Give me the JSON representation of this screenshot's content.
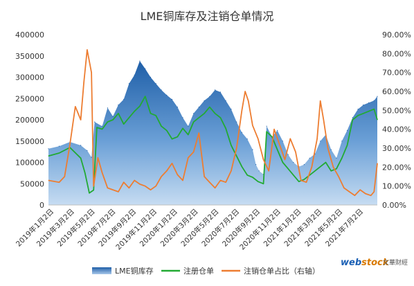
{
  "chart_data": {
    "type": "area",
    "title": "LME铜库存及注销仓单情况",
    "x_ticks": [
      "2019年1月2日",
      "2019年3月2日",
      "2019年5月2日",
      "2019年7月2日",
      "2019年9月2日",
      "2019年11月2日",
      "2020年1月2日",
      "2020年3月2日",
      "2020年5月2日",
      "2020年7月2日",
      "2020年9月2日",
      "2020年11月2日",
      "2021年1月2日",
      "2021年3月2日",
      "2021年5月2日",
      "2021年7月2日"
    ],
    "y_left": {
      "min": 0,
      "max": 400000,
      "ticks": [
        "0",
        "50000",
        "100000",
        "150000",
        "200000",
        "250000",
        "300000",
        "350000",
        "400000"
      ]
    },
    "y_right": {
      "min": 0,
      "max": 90,
      "ticks": [
        "0.00%",
        "10.00%",
        "20.00%",
        "30.00%",
        "40.00%",
        "50.00%",
        "60.00%",
        "70.00%",
        "80.00%",
        "90.00%"
      ]
    },
    "series": [
      {
        "name": "LME铜库存",
        "axis": "left",
        "style": "area",
        "color": "#2f6db0",
        "points": [
          [
            0,
            132000
          ],
          [
            1,
            138000
          ],
          [
            2,
            148000
          ],
          [
            3,
            140000
          ],
          [
            3.6,
            128000
          ],
          [
            4,
            112000
          ],
          [
            4.3,
            195000
          ],
          [
            5,
            185000
          ],
          [
            5.5,
            228000
          ],
          [
            6,
            208000
          ],
          [
            6.5,
            235000
          ],
          [
            7,
            248000
          ],
          [
            7.5,
            285000
          ],
          [
            8,
            305000
          ],
          [
            8.5,
            338000
          ],
          [
            9,
            320000
          ],
          [
            9.5,
            300000
          ],
          [
            10,
            285000
          ],
          [
            10.5,
            270000
          ],
          [
            11,
            258000
          ],
          [
            11.5,
            248000
          ],
          [
            12,
            230000
          ],
          [
            12.5,
            205000
          ],
          [
            13,
            185000
          ],
          [
            13.5,
            215000
          ],
          [
            14,
            230000
          ],
          [
            14.5,
            245000
          ],
          [
            15,
            255000
          ],
          [
            15.5,
            270000
          ],
          [
            16,
            265000
          ],
          [
            16.5,
            245000
          ],
          [
            17,
            225000
          ],
          [
            17.5,
            195000
          ],
          [
            18,
            170000
          ],
          [
            18.5,
            155000
          ],
          [
            19,
            130000
          ],
          [
            19.3,
            95000
          ],
          [
            19.6,
            80000
          ],
          [
            20,
            72000
          ],
          [
            20.3,
            185000
          ],
          [
            20.8,
            160000
          ],
          [
            21.3,
            175000
          ],
          [
            21.8,
            150000
          ],
          [
            22.3,
            118000
          ],
          [
            22.8,
            100000
          ],
          [
            23.3,
            90000
          ],
          [
            23.8,
            95000
          ],
          [
            24.3,
            110000
          ],
          [
            24.8,
            120000
          ],
          [
            25.3,
            150000
          ],
          [
            25.8,
            165000
          ],
          [
            26.3,
            130000
          ],
          [
            26.8,
            110000
          ],
          [
            27.3,
            150000
          ],
          [
            27.8,
            175000
          ],
          [
            28.3,
            205000
          ],
          [
            28.8,
            225000
          ],
          [
            29.3,
            235000
          ],
          [
            29.8,
            240000
          ],
          [
            30.3,
            245000
          ],
          [
            30.6,
            255000
          ]
        ]
      },
      {
        "name": "注册仓单",
        "axis": "left",
        "style": "line",
        "color": "#22aa33",
        "points": [
          [
            0,
            115000
          ],
          [
            1,
            122000
          ],
          [
            2,
            135000
          ],
          [
            3,
            110000
          ],
          [
            3.4,
            75000
          ],
          [
            3.8,
            28000
          ],
          [
            4.2,
            35000
          ],
          [
            4.5,
            182000
          ],
          [
            5,
            178000
          ],
          [
            5.5,
            195000
          ],
          [
            6,
            200000
          ],
          [
            6.5,
            215000
          ],
          [
            7,
            190000
          ],
          [
            7.5,
            205000
          ],
          [
            8,
            220000
          ],
          [
            8.5,
            232000
          ],
          [
            9,
            255000
          ],
          [
            9.5,
            215000
          ],
          [
            10,
            210000
          ],
          [
            10.5,
            185000
          ],
          [
            11,
            175000
          ],
          [
            11.5,
            155000
          ],
          [
            12,
            160000
          ],
          [
            12.5,
            180000
          ],
          [
            13,
            165000
          ],
          [
            13.5,
            195000
          ],
          [
            14,
            205000
          ],
          [
            14.5,
            215000
          ],
          [
            15,
            230000
          ],
          [
            15.5,
            215000
          ],
          [
            16,
            205000
          ],
          [
            16.5,
            180000
          ],
          [
            17,
            140000
          ],
          [
            17.5,
            115000
          ],
          [
            18,
            90000
          ],
          [
            18.5,
            70000
          ],
          [
            19,
            65000
          ],
          [
            19.5,
            55000
          ],
          [
            20,
            50000
          ],
          [
            20.3,
            172000
          ],
          [
            20.8,
            160000
          ],
          [
            21.3,
            130000
          ],
          [
            21.8,
            100000
          ],
          [
            22.3,
            85000
          ],
          [
            22.8,
            70000
          ],
          [
            23.3,
            55000
          ],
          [
            23.8,
            60000
          ],
          [
            24.3,
            70000
          ],
          [
            24.8,
            80000
          ],
          [
            25.3,
            90000
          ],
          [
            25.8,
            100000
          ],
          [
            26.3,
            80000
          ],
          [
            26.8,
            85000
          ],
          [
            27.3,
            110000
          ],
          [
            27.8,
            140000
          ],
          [
            28.3,
            200000
          ],
          [
            28.8,
            210000
          ],
          [
            29.3,
            215000
          ],
          [
            29.8,
            220000
          ],
          [
            30.3,
            225000
          ],
          [
            30.6,
            200000
          ]
        ]
      },
      {
        "name": "注销仓单占比（右轴）",
        "axis": "right",
        "style": "line",
        "color": "#ed7d31",
        "points": [
          [
            0,
            13
          ],
          [
            1,
            12
          ],
          [
            1.5,
            15
          ],
          [
            2,
            32
          ],
          [
            2.5,
            52
          ],
          [
            3,
            45
          ],
          [
            3.3,
            65
          ],
          [
            3.6,
            82
          ],
          [
            4,
            70
          ],
          [
            4.2,
            10
          ],
          [
            4.6,
            25
          ],
          [
            5,
            17
          ],
          [
            5.5,
            9
          ],
          [
            6,
            8
          ],
          [
            6.5,
            7
          ],
          [
            7,
            12
          ],
          [
            7.5,
            9
          ],
          [
            8,
            13
          ],
          [
            8.5,
            11
          ],
          [
            9,
            10
          ],
          [
            9.5,
            8
          ],
          [
            10,
            10
          ],
          [
            10.5,
            15
          ],
          [
            11,
            18
          ],
          [
            11.5,
            22
          ],
          [
            12,
            16
          ],
          [
            12.5,
            13
          ],
          [
            13,
            25
          ],
          [
            13.5,
            28
          ],
          [
            14,
            38
          ],
          [
            14.5,
            15
          ],
          [
            15,
            12
          ],
          [
            15.5,
            9
          ],
          [
            16,
            13
          ],
          [
            16.5,
            12
          ],
          [
            17,
            18
          ],
          [
            17.5,
            30
          ],
          [
            18,
            50
          ],
          [
            18.3,
            60
          ],
          [
            18.6,
            55
          ],
          [
            19,
            42
          ],
          [
            19.5,
            35
          ],
          [
            20,
            24
          ],
          [
            20.5,
            18
          ],
          [
            21,
            40
          ],
          [
            21.5,
            32
          ],
          [
            22,
            24
          ],
          [
            22.5,
            35
          ],
          [
            23,
            28
          ],
          [
            23.5,
            13
          ],
          [
            24,
            12
          ],
          [
            24.5,
            20
          ],
          [
            25,
            35
          ],
          [
            25.3,
            55
          ],
          [
            25.6,
            45
          ],
          [
            26,
            30
          ],
          [
            26.5,
            20
          ],
          [
            27,
            15
          ],
          [
            27.5,
            9
          ],
          [
            28,
            7
          ],
          [
            28.5,
            5
          ],
          [
            29,
            8
          ],
          [
            29.5,
            6
          ],
          [
            30,
            5
          ],
          [
            30.3,
            7
          ],
          [
            30.6,
            22
          ]
        ]
      }
    ],
    "legend": [
      "LME铜库存",
      "注册仓单",
      "注销仓单占比（右轴）"
    ],
    "legend_position": "bottom",
    "grid": false
  },
  "watermark": {
    "brand": "webstock",
    "cn": "文華財經"
  }
}
